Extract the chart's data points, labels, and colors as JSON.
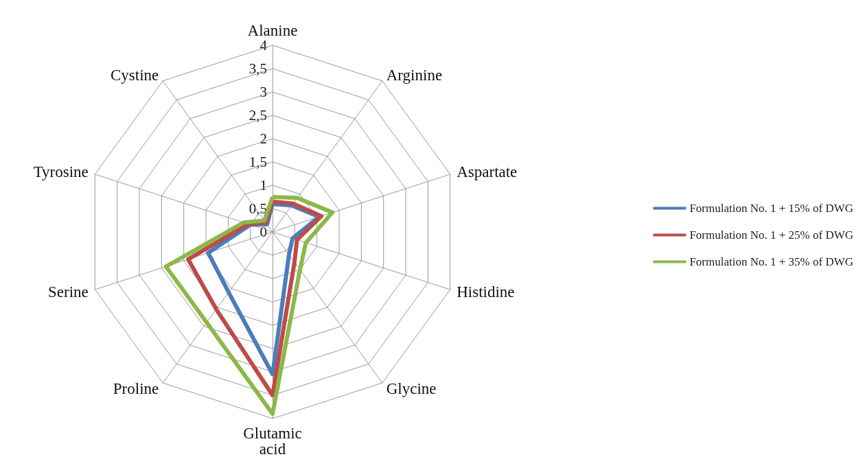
{
  "chart_data": {
    "type": "radar",
    "categories": [
      "Alanine",
      "Arginine",
      "Aspartate",
      "Histidine",
      "Glycine",
      "Glutamic acid",
      "Proline",
      "Serine",
      "Tyrosine",
      "Cystine"
    ],
    "series": [
      {
        "name": "Formulation No. 1 + 15% of DWG",
        "color": "#4a7ebb",
        "values": [
          0.6,
          0.7,
          1.05,
          0.45,
          0.6,
          3.05,
          1.6,
          1.45,
          0.5,
          0.2
        ]
      },
      {
        "name": "Formulation No. 1 + 25% of DWG",
        "color": "#be4b48",
        "values": [
          0.65,
          0.75,
          1.1,
          0.55,
          0.8,
          3.5,
          2.05,
          1.9,
          0.55,
          0.25
        ]
      },
      {
        "name": "Formulation No. 1 + 35% of DWG",
        "color": "#8cb84a",
        "values": [
          0.75,
          0.9,
          1.35,
          0.75,
          1.0,
          3.9,
          2.4,
          2.4,
          0.65,
          0.3
        ]
      }
    ],
    "ylim": [
      0,
      4
    ],
    "yticks": [
      0,
      {
        "value": 0.5,
        "label": "0,5"
      },
      1,
      {
        "value": 1.5,
        "label": "1,5"
      },
      2,
      {
        "value": 2.5,
        "label": "2,5"
      },
      3,
      {
        "value": 3.5,
        "label": "3,5"
      },
      4
    ],
    "legend": "right",
    "line_style": "solid",
    "marker": "none"
  }
}
